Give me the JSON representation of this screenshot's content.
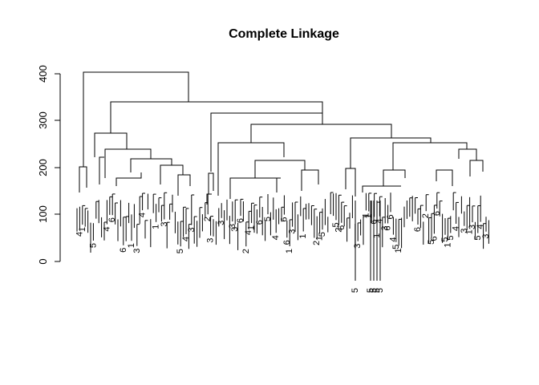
{
  "chart_data": {
    "type": "dendrogram",
    "title": "Complete Linkage",
    "ylim": [
      0,
      400
    ],
    "yticks": [
      0,
      100,
      200,
      300,
      400
    ],
    "ytick_labels": [
      "0",
      "100",
      "200",
      "300",
      "400"
    ],
    "top_merges": [
      {
        "height": 400
      },
      {
        "height": 337
      },
      {
        "height": 315
      },
      {
        "height": 290
      },
      {
        "height": 272
      },
      {
        "height": 262
      },
      {
        "height": 237
      },
      {
        "height": 220
      },
      {
        "height": 205
      },
      {
        "height": 200
      }
    ],
    "leaf_label_classes": [
      "1",
      "2",
      "3",
      "4",
      "5",
      "6"
    ]
  }
}
